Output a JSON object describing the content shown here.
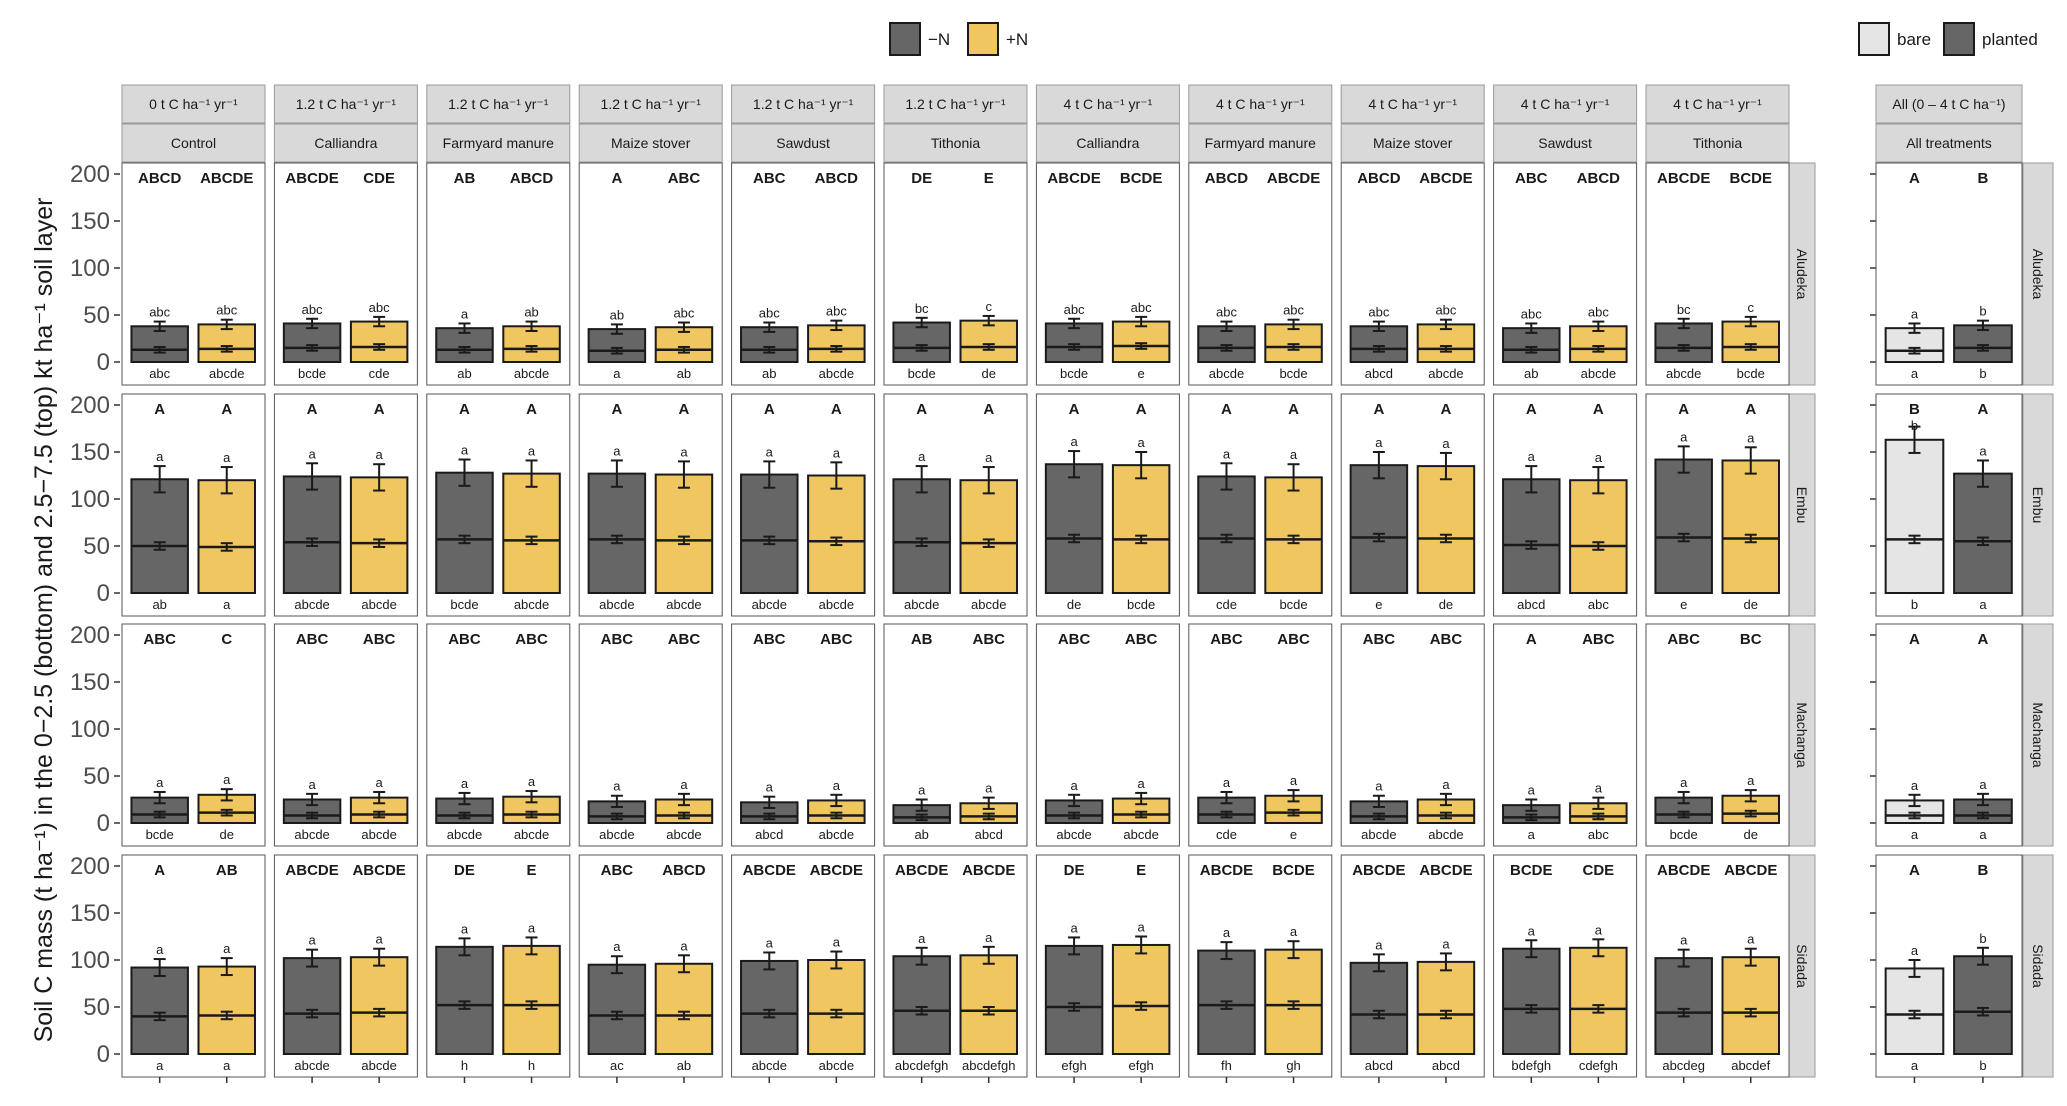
{
  "legend_nitrogen": [
    {
      "label": "−N",
      "color": "#666666"
    },
    {
      "label": "+N",
      "color": "#F0C661"
    }
  ],
  "legend_cover": [
    {
      "label": "bare",
      "color": "#E5E5E5"
    },
    {
      "label": "planted",
      "color": "#666666"
    }
  ],
  "chart_data": {
    "type": "bar",
    "ylabel": "Soil C mass (t ha⁻¹) in the 0−2.5 (bottom) and 2.5−7.5 (top) kt ha⁻¹ soil layer",
    "ylim": [
      0,
      210
    ],
    "yticks": [
      "0",
      "50",
      "100",
      "150",
      "200"
    ],
    "ytick_values": [
      0,
      50,
      100,
      150,
      200
    ],
    "panels": [
      {
        "rate": "0 t C ha⁻¹ yr⁻¹",
        "treatment": "Control"
      },
      {
        "rate": "1.2 t C ha⁻¹ yr⁻¹",
        "treatment": "Calliandra"
      },
      {
        "rate": "1.2 t C ha⁻¹ yr⁻¹",
        "treatment": "Farmyard manure"
      },
      {
        "rate": "1.2 t C ha⁻¹ yr⁻¹",
        "treatment": "Maize stover"
      },
      {
        "rate": "1.2 t C ha⁻¹ yr⁻¹",
        "treatment": "Sawdust"
      },
      {
        "rate": "1.2 t C ha⁻¹ yr⁻¹",
        "treatment": "Tithonia"
      },
      {
        "rate": "4 t C ha⁻¹ yr⁻¹",
        "treatment": "Calliandra"
      },
      {
        "rate": "4 t C ha⁻¹ yr⁻¹",
        "treatment": "Farmyard manure"
      },
      {
        "rate": "4 t C ha⁻¹ yr⁻¹",
        "treatment": "Maize stover"
      },
      {
        "rate": "4 t C ha⁻¹ yr⁻¹",
        "treatment": "Sawdust"
      },
      {
        "rate": "4 t C ha⁻¹ yr⁻¹",
        "treatment": "Tithonia"
      },
      {
        "rate": "All (0 – 4 t C ha⁻¹)",
        "treatment": "All treatments"
      }
    ],
    "bar_groups": {
      "treatment_panels": [
        "−N",
        "+N"
      ],
      "all_panel": [
        "bare",
        "planted"
      ]
    },
    "sites": [
      {
        "site": "Aludeka",
        "se_total": 5,
        "se_bottom": 3,
        "total": [
          [
            38,
            40
          ],
          [
            41,
            43
          ],
          [
            36,
            38
          ],
          [
            35,
            37
          ],
          [
            37,
            39
          ],
          [
            42,
            44
          ],
          [
            41,
            43
          ],
          [
            38,
            40
          ],
          [
            38,
            40
          ],
          [
            36,
            38
          ],
          [
            41,
            43
          ],
          [
            36,
            39
          ]
        ],
        "bottom": [
          [
            13,
            14
          ],
          [
            15,
            16
          ],
          [
            13,
            14
          ],
          [
            12,
            13
          ],
          [
            13,
            14
          ],
          [
            15,
            16
          ],
          [
            16,
            17
          ],
          [
            15,
            16
          ],
          [
            14,
            14
          ],
          [
            13,
            14
          ],
          [
            15,
            16
          ],
          [
            12,
            15
          ]
        ],
        "caps": [
          [
            "ABCD",
            "ABCDE"
          ],
          [
            "ABCDE",
            "CDE"
          ],
          [
            "AB",
            "ABCD"
          ],
          [
            "A",
            "ABC"
          ],
          [
            "ABC",
            "ABCD"
          ],
          [
            "DE",
            "E"
          ],
          [
            "ABCDE",
            "BCDE"
          ],
          [
            "ABCD",
            "ABCDE"
          ],
          [
            "ABCD",
            "ABCDE"
          ],
          [
            "ABC",
            "ABCD"
          ],
          [
            "ABCDE",
            "BCDE"
          ],
          [
            "A",
            "B"
          ]
        ],
        "top_letters": [
          [
            "abc",
            "abc"
          ],
          [
            "abc",
            "abc"
          ],
          [
            "a",
            "ab"
          ],
          [
            "ab",
            "abc"
          ],
          [
            "abc",
            "abc"
          ],
          [
            "bc",
            "c"
          ],
          [
            "abc",
            "abc"
          ],
          [
            "abc",
            "abc"
          ],
          [
            "abc",
            "abc"
          ],
          [
            "abc",
            "abc"
          ],
          [
            "bc",
            "c"
          ],
          [
            "a",
            "b"
          ]
        ],
        "bottom_letters": [
          [
            "abc",
            "abcde"
          ],
          [
            "bcde",
            "cde"
          ],
          [
            "ab",
            "abcde"
          ],
          [
            "a",
            "ab"
          ],
          [
            "ab",
            "abcde"
          ],
          [
            "bcde",
            "de"
          ],
          [
            "bcde",
            "e"
          ],
          [
            "abcde",
            "bcde"
          ],
          [
            "abcd",
            "abcde"
          ],
          [
            "ab",
            "abcde"
          ],
          [
            "abcde",
            "bcde"
          ],
          [
            "a",
            "b"
          ]
        ]
      },
      {
        "site": "Embu",
        "se_total": 14,
        "se_bottom": 4,
        "total": [
          [
            121,
            120
          ],
          [
            124,
            123
          ],
          [
            128,
            127
          ],
          [
            127,
            126
          ],
          [
            126,
            125
          ],
          [
            121,
            120
          ],
          [
            137,
            136
          ],
          [
            124,
            123
          ],
          [
            136,
            135
          ],
          [
            121,
            120
          ],
          [
            142,
            141
          ],
          [
            163,
            127
          ]
        ],
        "bottom": [
          [
            50,
            49
          ],
          [
            54,
            53
          ],
          [
            57,
            56
          ],
          [
            57,
            56
          ],
          [
            56,
            55
          ],
          [
            54,
            53
          ],
          [
            58,
            57
          ],
          [
            58,
            57
          ],
          [
            59,
            58
          ],
          [
            51,
            50
          ],
          [
            59,
            58
          ],
          [
            57,
            55
          ]
        ],
        "caps": [
          [
            "A",
            "A"
          ],
          [
            "A",
            "A"
          ],
          [
            "A",
            "A"
          ],
          [
            "A",
            "A"
          ],
          [
            "A",
            "A"
          ],
          [
            "A",
            "A"
          ],
          [
            "A",
            "A"
          ],
          [
            "A",
            "A"
          ],
          [
            "A",
            "A"
          ],
          [
            "A",
            "A"
          ],
          [
            "A",
            "A"
          ],
          [
            "B",
            "A"
          ]
        ],
        "top_letters": [
          [
            "a",
            "a"
          ],
          [
            "a",
            "a"
          ],
          [
            "a",
            "a"
          ],
          [
            "a",
            "a"
          ],
          [
            "a",
            "a"
          ],
          [
            "a",
            "a"
          ],
          [
            "a",
            "a"
          ],
          [
            "a",
            "a"
          ],
          [
            "a",
            "a"
          ],
          [
            "a",
            "a"
          ],
          [
            "a",
            "a"
          ],
          [
            "b",
            "a"
          ]
        ],
        "bottom_letters": [
          [
            "ab",
            "a"
          ],
          [
            "abcde",
            "abcde"
          ],
          [
            "bcde",
            "abcde"
          ],
          [
            "abcde",
            "abcde"
          ],
          [
            "abcde",
            "abcde"
          ],
          [
            "abcde",
            "abcde"
          ],
          [
            "de",
            "bcde"
          ],
          [
            "cde",
            "bcde"
          ],
          [
            "e",
            "de"
          ],
          [
            "abcd",
            "abc"
          ],
          [
            "e",
            "de"
          ],
          [
            "b",
            "a"
          ]
        ]
      },
      {
        "site": "Machanga",
        "se_total": 6,
        "se_bottom": 3,
        "total": [
          [
            27,
            30
          ],
          [
            25,
            27
          ],
          [
            26,
            28
          ],
          [
            23,
            25
          ],
          [
            22,
            24
          ],
          [
            19,
            21
          ],
          [
            24,
            26
          ],
          [
            27,
            29
          ],
          [
            23,
            25
          ],
          [
            19,
            21
          ],
          [
            27,
            29
          ],
          [
            24,
            25
          ]
        ],
        "bottom": [
          [
            9,
            11
          ],
          [
            8,
            9
          ],
          [
            8,
            9
          ],
          [
            7,
            8
          ],
          [
            7,
            8
          ],
          [
            6,
            7
          ],
          [
            8,
            9
          ],
          [
            9,
            11
          ],
          [
            7,
            8
          ],
          [
            6,
            7
          ],
          [
            9,
            10
          ],
          [
            8,
            8
          ]
        ],
        "caps": [
          [
            "ABC",
            "C"
          ],
          [
            "ABC",
            "ABC"
          ],
          [
            "ABC",
            "ABC"
          ],
          [
            "ABC",
            "ABC"
          ],
          [
            "ABC",
            "ABC"
          ],
          [
            "AB",
            "ABC"
          ],
          [
            "ABC",
            "ABC"
          ],
          [
            "ABC",
            "ABC"
          ],
          [
            "ABC",
            "ABC"
          ],
          [
            "A",
            "ABC"
          ],
          [
            "ABC",
            "BC"
          ],
          [
            "A",
            "A"
          ]
        ],
        "top_letters": [
          [
            "a",
            "a"
          ],
          [
            "a",
            "a"
          ],
          [
            "a",
            "a"
          ],
          [
            "a",
            "a"
          ],
          [
            "a",
            "a"
          ],
          [
            "a",
            "a"
          ],
          [
            "a",
            "a"
          ],
          [
            "a",
            "a"
          ],
          [
            "a",
            "a"
          ],
          [
            "a",
            "a"
          ],
          [
            "a",
            "a"
          ],
          [
            "a",
            "a"
          ]
        ],
        "bottom_letters": [
          [
            "bcde",
            "de"
          ],
          [
            "abcde",
            "abcde"
          ],
          [
            "abcde",
            "abcde"
          ],
          [
            "abcde",
            "abcde"
          ],
          [
            "abcd",
            "abcde"
          ],
          [
            "ab",
            "abcd"
          ],
          [
            "abcde",
            "abcde"
          ],
          [
            "cde",
            "e"
          ],
          [
            "abcde",
            "abcde"
          ],
          [
            "a",
            "abc"
          ],
          [
            "bcde",
            "de"
          ],
          [
            "a",
            "a"
          ]
        ]
      },
      {
        "site": "Sidada",
        "se_total": 9,
        "se_bottom": 4,
        "total": [
          [
            92,
            93
          ],
          [
            102,
            103
          ],
          [
            114,
            115
          ],
          [
            95,
            96
          ],
          [
            99,
            100
          ],
          [
            104,
            105
          ],
          [
            115,
            116
          ],
          [
            110,
            111
          ],
          [
            97,
            98
          ],
          [
            112,
            113
          ],
          [
            102,
            103
          ],
          [
            91,
            104
          ]
        ],
        "bottom": [
          [
            40,
            41
          ],
          [
            43,
            44
          ],
          [
            52,
            52
          ],
          [
            41,
            41
          ],
          [
            43,
            43
          ],
          [
            46,
            46
          ],
          [
            50,
            51
          ],
          [
            52,
            52
          ],
          [
            42,
            42
          ],
          [
            48,
            48
          ],
          [
            44,
            44
          ],
          [
            42,
            45
          ]
        ],
        "caps": [
          [
            "A",
            "AB"
          ],
          [
            "ABCDE",
            "ABCDE"
          ],
          [
            "DE",
            "E"
          ],
          [
            "ABC",
            "ABCD"
          ],
          [
            "ABCDE",
            "ABCDE"
          ],
          [
            "ABCDE",
            "ABCDE"
          ],
          [
            "DE",
            "E"
          ],
          [
            "ABCDE",
            "BCDE"
          ],
          [
            "ABCDE",
            "ABCDE"
          ],
          [
            "BCDE",
            "CDE"
          ],
          [
            "ABCDE",
            "ABCDE"
          ],
          [
            "A",
            "B"
          ]
        ],
        "top_letters": [
          [
            "a",
            "a"
          ],
          [
            "a",
            "a"
          ],
          [
            "a",
            "a"
          ],
          [
            "a",
            "a"
          ],
          [
            "a",
            "a"
          ],
          [
            "a",
            "a"
          ],
          [
            "a",
            "a"
          ],
          [
            "a",
            "a"
          ],
          [
            "a",
            "a"
          ],
          [
            "a",
            "a"
          ],
          [
            "a",
            "a"
          ],
          [
            "a",
            "b"
          ]
        ],
        "bottom_letters": [
          [
            "a",
            "a"
          ],
          [
            "abcde",
            "abcde"
          ],
          [
            "h",
            "h"
          ],
          [
            "ac",
            "ab"
          ],
          [
            "abcde",
            "abcde"
          ],
          [
            "abcdefgh",
            "abcdefgh"
          ],
          [
            "efgh",
            "efgh"
          ],
          [
            "fh",
            "gh"
          ],
          [
            "abcd",
            "abcd"
          ],
          [
            "bdefgh",
            "cdefgh"
          ],
          [
            "abcdeg",
            "abcdef"
          ],
          [
            "a",
            "b"
          ]
        ]
      }
    ]
  }
}
